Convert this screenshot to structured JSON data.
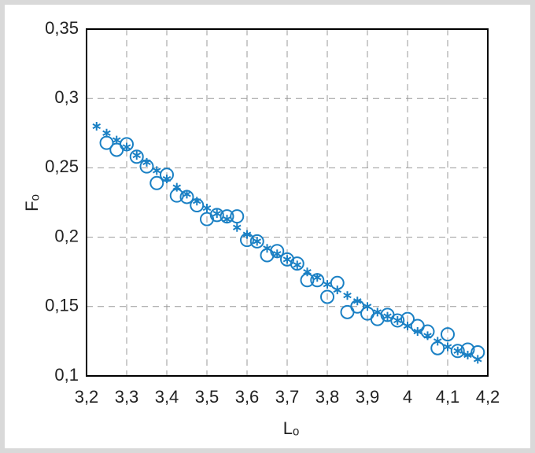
{
  "chart_data": {
    "type": "scatter",
    "xlabel": "Lₒ",
    "ylabel": "Fₒ",
    "xlim": [
      3.2,
      4.2
    ],
    "ylim": [
      0.1,
      0.35
    ],
    "xticks": [
      {
        "value": 3.2,
        "label": "3,2"
      },
      {
        "value": 3.3,
        "label": "3,3"
      },
      {
        "value": 3.4,
        "label": "3,4"
      },
      {
        "value": 3.5,
        "label": "3,5"
      },
      {
        "value": 3.6,
        "label": "3,6"
      },
      {
        "value": 3.7,
        "label": "3,7"
      },
      {
        "value": 3.8,
        "label": "3,8"
      },
      {
        "value": 3.9,
        "label": "3,9"
      },
      4,
      {
        "value": 4.1,
        "label": "4,1"
      },
      {
        "value": 4.2,
        "label": "4,2"
      }
    ],
    "yticks": [
      {
        "value": 0.1,
        "label": "0,1"
      },
      {
        "value": 0.15,
        "label": "0,15"
      },
      {
        "value": 0.2,
        "label": "0,2"
      },
      {
        "value": 0.25,
        "label": "0,25"
      },
      {
        "value": 0.3,
        "label": "0,3"
      },
      {
        "value": 0.35,
        "label": "0,35"
      }
    ],
    "grid": true,
    "series": [
      {
        "marker": "star",
        "color": "#1a80c4",
        "x": [
          3.225,
          3.25,
          3.275,
          3.3,
          3.325,
          3.35,
          3.375,
          3.4,
          3.425,
          3.45,
          3.475,
          3.5,
          3.525,
          3.55,
          3.575,
          3.6,
          3.625,
          3.65,
          3.675,
          3.7,
          3.725,
          3.75,
          3.775,
          3.8,
          3.825,
          3.85,
          3.875,
          3.9,
          3.925,
          3.95,
          3.975,
          4.0,
          4.025,
          4.05,
          4.075,
          4.1,
          4.125,
          4.15,
          4.175
        ],
        "values": [
          0.28,
          0.275,
          0.27,
          0.265,
          0.259,
          0.254,
          0.248,
          0.242,
          0.236,
          0.231,
          0.226,
          0.221,
          0.217,
          0.213,
          0.207,
          0.202,
          0.197,
          0.192,
          0.188,
          0.184,
          0.18,
          0.175,
          0.171,
          0.166,
          0.162,
          0.158,
          0.154,
          0.15,
          0.146,
          0.143,
          0.14,
          0.136,
          0.132,
          0.129,
          0.125,
          0.121,
          0.118,
          0.115,
          0.112
        ]
      },
      {
        "marker": "circle",
        "color": "#1a80c4",
        "x": [
          3.25,
          3.275,
          3.3,
          3.325,
          3.35,
          3.375,
          3.4,
          3.425,
          3.45,
          3.475,
          3.5,
          3.525,
          3.55,
          3.575,
          3.6,
          3.625,
          3.65,
          3.675,
          3.7,
          3.725,
          3.75,
          3.775,
          3.8,
          3.825,
          3.85,
          3.875,
          3.9,
          3.925,
          3.95,
          3.975,
          4.0,
          4.025,
          4.05,
          4.075,
          4.1,
          4.125,
          4.15,
          4.175
        ],
        "values": [
          0.268,
          0.263,
          0.267,
          0.258,
          0.251,
          0.239,
          0.245,
          0.23,
          0.229,
          0.223,
          0.213,
          0.216,
          0.215,
          0.215,
          0.198,
          0.197,
          0.187,
          0.19,
          0.184,
          0.181,
          0.169,
          0.169,
          0.157,
          0.167,
          0.146,
          0.15,
          0.145,
          0.141,
          0.144,
          0.14,
          0.141,
          0.136,
          0.132,
          0.12,
          0.13,
          0.118,
          0.119,
          0.117
        ]
      }
    ]
  }
}
